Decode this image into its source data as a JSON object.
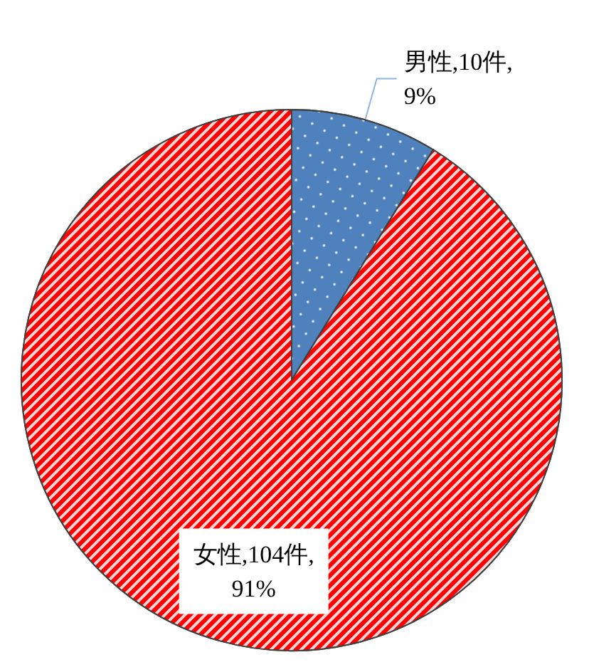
{
  "chart_data": {
    "type": "pie",
    "categories": [
      "男性",
      "女性"
    ],
    "values": [
      10,
      104
    ],
    "colors": [
      "#4f81bd",
      "#ff0000"
    ],
    "value_labels": [
      "10件,\n9%",
      "104件,\n91%"
    ]
  }
}
